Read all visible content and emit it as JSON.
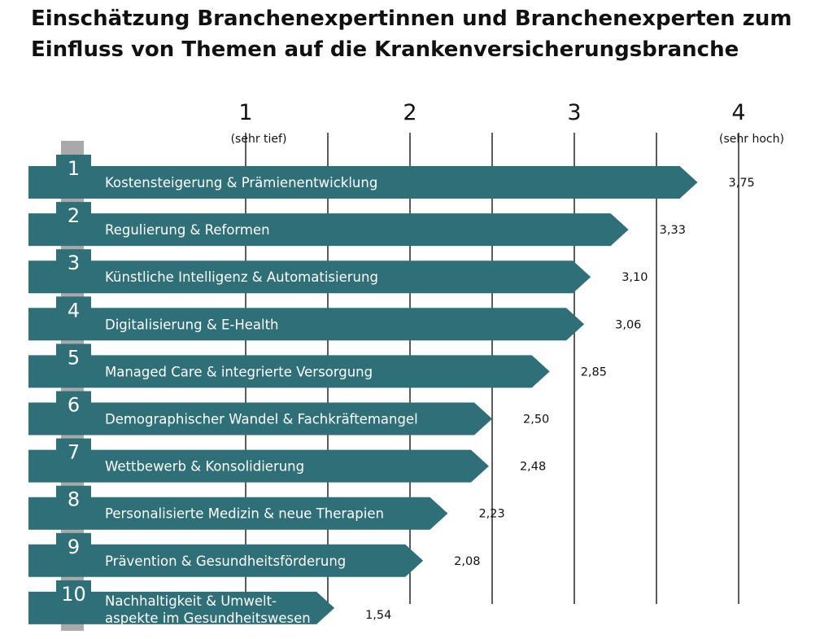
{
  "title_lines": [
    "Einschätzung Branchenexpertinnen und Branchenexperten zum",
    "Einfluss von Themen auf die Krankenversicherungsbranche"
  ],
  "colors": {
    "bar": "#2f6f78",
    "rank_box": "#2f6f78",
    "rank_post": "#a9a9a9",
    "gridline": "#333333",
    "text": "#111111",
    "bar_text": "#ffffff"
  },
  "chart_data": {
    "type": "bar",
    "orientation": "horizontal",
    "title": "Einschätzung Branchenexpertinnen und Branchenexperten zum Einfluss von Themen auf die Krankenversicherungsbranche",
    "xlim": [
      1,
      4
    ],
    "ticks": [
      {
        "value": 1,
        "label": "1",
        "sublabel": "(sehr tief)"
      },
      {
        "value": 2,
        "label": "2",
        "sublabel": ""
      },
      {
        "value": 3,
        "label": "3",
        "sublabel": ""
      },
      {
        "value": 4,
        "label": "4",
        "sublabel": "(sehr hoch)"
      }
    ],
    "gridlines": [
      1,
      1.5,
      2,
      2.5,
      3,
      3.5,
      4
    ],
    "items": [
      {
        "rank": "1",
        "lines": [
          "Kostensteigerung & Prämienentwicklung"
        ],
        "value": 3.75,
        "value_label": "3,75"
      },
      {
        "rank": "2",
        "lines": [
          "Regulierung & Reformen"
        ],
        "value": 3.33,
        "value_label": "3,33"
      },
      {
        "rank": "3",
        "lines": [
          "Künstliche Intelligenz & Automatisierung"
        ],
        "value": 3.1,
        "value_label": "3,10"
      },
      {
        "rank": "4",
        "lines": [
          "Digitalisierung & E-Health"
        ],
        "value": 3.06,
        "value_label": "3,06"
      },
      {
        "rank": "5",
        "lines": [
          "Managed Care & integrierte Versorgung"
        ],
        "value": 2.85,
        "value_label": "2,85"
      },
      {
        "rank": "6",
        "lines": [
          "Demographischer Wandel & Fachkräftemangel"
        ],
        "value": 2.5,
        "value_label": "2,50"
      },
      {
        "rank": "7",
        "lines": [
          "Wettbewerb & Konsolidierung"
        ],
        "value": 2.48,
        "value_label": "2,48"
      },
      {
        "rank": "8",
        "lines": [
          "Personalisierte Medizin & neue Therapien"
        ],
        "value": 2.23,
        "value_label": "2,23"
      },
      {
        "rank": "9",
        "lines": [
          "Prävention & Gesundheitsförderung"
        ],
        "value": 2.08,
        "value_label": "2,08"
      },
      {
        "rank": "10",
        "lines": [
          "Nachhaltigkeit & Umwelt-",
          "aspekte im Gesundheitswesen"
        ],
        "value": 1.54,
        "value_label": "1,54"
      }
    ]
  }
}
